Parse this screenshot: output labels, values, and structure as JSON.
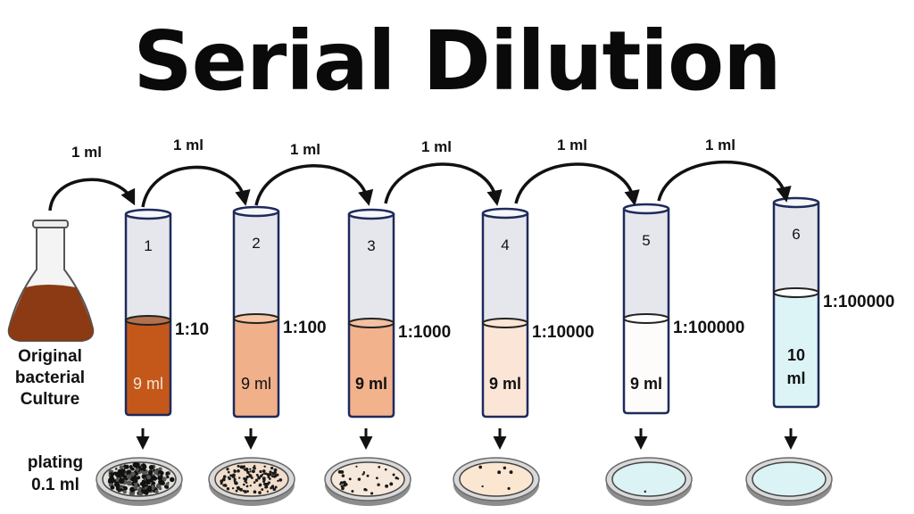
{
  "title": "Serial Dilution",
  "transfer_label": "1 ml",
  "flask": {
    "label_lines": [
      "Original",
      "bacterial",
      "Culture"
    ],
    "liquid_color": "#8B3A14"
  },
  "plating_label_lines": [
    "plating",
    "0.1 ml"
  ],
  "tubes": [
    {
      "number": "1",
      "ratio": "1:10",
      "volume_lines": [
        "9 ml"
      ],
      "liquid_color": "#C4581A",
      "surface_color": "#B2724E",
      "volume_bold": false,
      "colonies": 220
    },
    {
      "number": "2",
      "ratio": "1:100",
      "volume_lines": [
        "9 ml"
      ],
      "liquid_color": "#F0B08A",
      "surface_color": "#F6C6A7",
      "volume_bold": false,
      "colonies": 110
    },
    {
      "number": "3",
      "ratio": "1:1000",
      "volume_lines": [
        "9 ml"
      ],
      "liquid_color": "#F2B28C",
      "surface_color": "#F3C1A1",
      "volume_bold": true,
      "colonies": 30
    },
    {
      "number": "4",
      "ratio": "1:10000",
      "volume_lines": [
        "9 ml"
      ],
      "liquid_color": "#FBE5D6",
      "surface_color": "#FBE5D6",
      "volume_bold": true,
      "colonies": 6
    },
    {
      "number": "5",
      "ratio": "1:100000",
      "volume_lines": [
        "9 ml"
      ],
      "liquid_color": "#FEFCFA",
      "surface_color": "#FFFFFF",
      "volume_bold": true,
      "colonies": 1
    },
    {
      "number": "6",
      "ratio": "1:100000",
      "volume_lines": [
        "10",
        "ml"
      ],
      "liquid_color": "#DDF4F6",
      "surface_color": "#FFFFFF",
      "volume_bold": true,
      "colonies": 0
    }
  ],
  "plates": [
    {
      "agar_color": "#E3E0DA"
    },
    {
      "agar_color": "#F1DDCB"
    },
    {
      "agar_color": "#F6E9DC"
    },
    {
      "agar_color": "#FBE6D2"
    },
    {
      "agar_color": "#DCF3F6"
    },
    {
      "agar_color": "#DCF3F6"
    }
  ],
  "colors": {
    "tube_outline": "#1F2A5C",
    "tube_glass": "#E6E7EC",
    "arrow": "#111111",
    "text": "#111111"
  }
}
